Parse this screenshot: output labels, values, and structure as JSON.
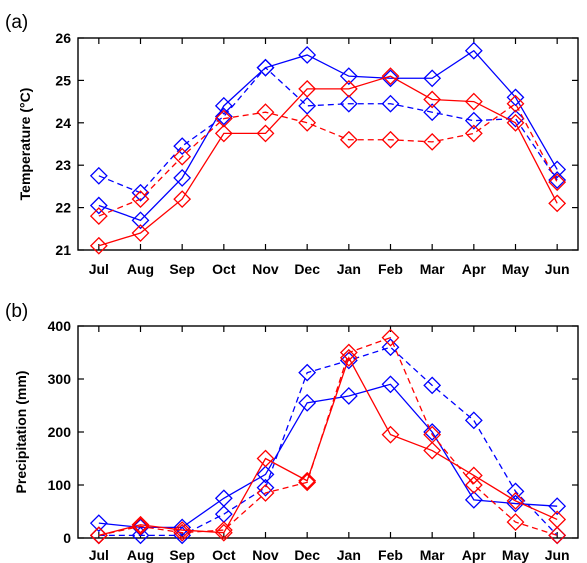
{
  "chart_data": [
    {
      "panel": "(a)",
      "type": "line",
      "categories": [
        "Jul",
        "Aug",
        "Sep",
        "Oct",
        "Nov",
        "Dec",
        "Jan",
        "Feb",
        "Mar",
        "Apr",
        "May",
        "Jun"
      ],
      "ylabel": "Temperature (°C)",
      "ylim": [
        21,
        26
      ],
      "yticks": [
        21,
        22,
        23,
        24,
        25,
        26
      ],
      "grid": false,
      "series": [
        {
          "color": "#0000ff",
          "style": "solid",
          "marker": "diamond",
          "values": [
            22.05,
            21.7,
            22.7,
            24.4,
            25.3,
            25.6,
            25.1,
            25.05,
            25.05,
            25.7,
            24.6,
            22.9
          ]
        },
        {
          "color": "#0000ff",
          "style": "dashed",
          "marker": "diamond",
          "values": [
            22.75,
            22.35,
            23.45,
            24.15,
            25.3,
            24.4,
            24.45,
            24.45,
            24.25,
            24.05,
            24.1,
            22.65
          ]
        },
        {
          "color": "#ff0000",
          "style": "solid",
          "marker": "diamond",
          "values": [
            21.1,
            21.4,
            22.2,
            23.75,
            23.75,
            24.8,
            24.8,
            25.1,
            24.55,
            24.5,
            24.0,
            22.1
          ]
        },
        {
          "color": "#ff0000",
          "style": "dashed",
          "marker": "diamond",
          "values": [
            21.8,
            22.2,
            23.2,
            24.1,
            24.25,
            24.0,
            23.6,
            23.6,
            23.55,
            23.75,
            24.45,
            22.6
          ]
        }
      ]
    },
    {
      "panel": "(b)",
      "type": "line",
      "categories": [
        "Jul",
        "Aug",
        "Sep",
        "Oct",
        "Nov",
        "Dec",
        "Jan",
        "Feb",
        "Mar",
        "Apr",
        "May",
        "Jun"
      ],
      "ylabel": "Precipitation (mm)",
      "ylim": [
        0,
        400
      ],
      "yticks": [
        0,
        100,
        200,
        300,
        400
      ],
      "grid": false,
      "series": [
        {
          "color": "#0000ff",
          "style": "solid",
          "marker": "diamond",
          "values": [
            28,
            20,
            20,
            75,
            120,
            255,
            268,
            290,
            200,
            72,
            65,
            60
          ]
        },
        {
          "color": "#0000ff",
          "style": "dashed",
          "marker": "diamond",
          "values": [
            5,
            5,
            5,
            45,
            95,
            312,
            335,
            360,
            288,
            222,
            88,
            5
          ]
        },
        {
          "color": "#ff0000",
          "style": "solid",
          "marker": "diamond",
          "values": [
            5,
            25,
            15,
            10,
            150,
            108,
            340,
            195,
            165,
            118,
            70,
            35
          ]
        },
        {
          "color": "#ff0000",
          "style": "dashed",
          "marker": "diamond",
          "values": [
            5,
            22,
            10,
            15,
            85,
            105,
            350,
            378,
            195,
            100,
            30,
            5
          ]
        }
      ]
    }
  ]
}
